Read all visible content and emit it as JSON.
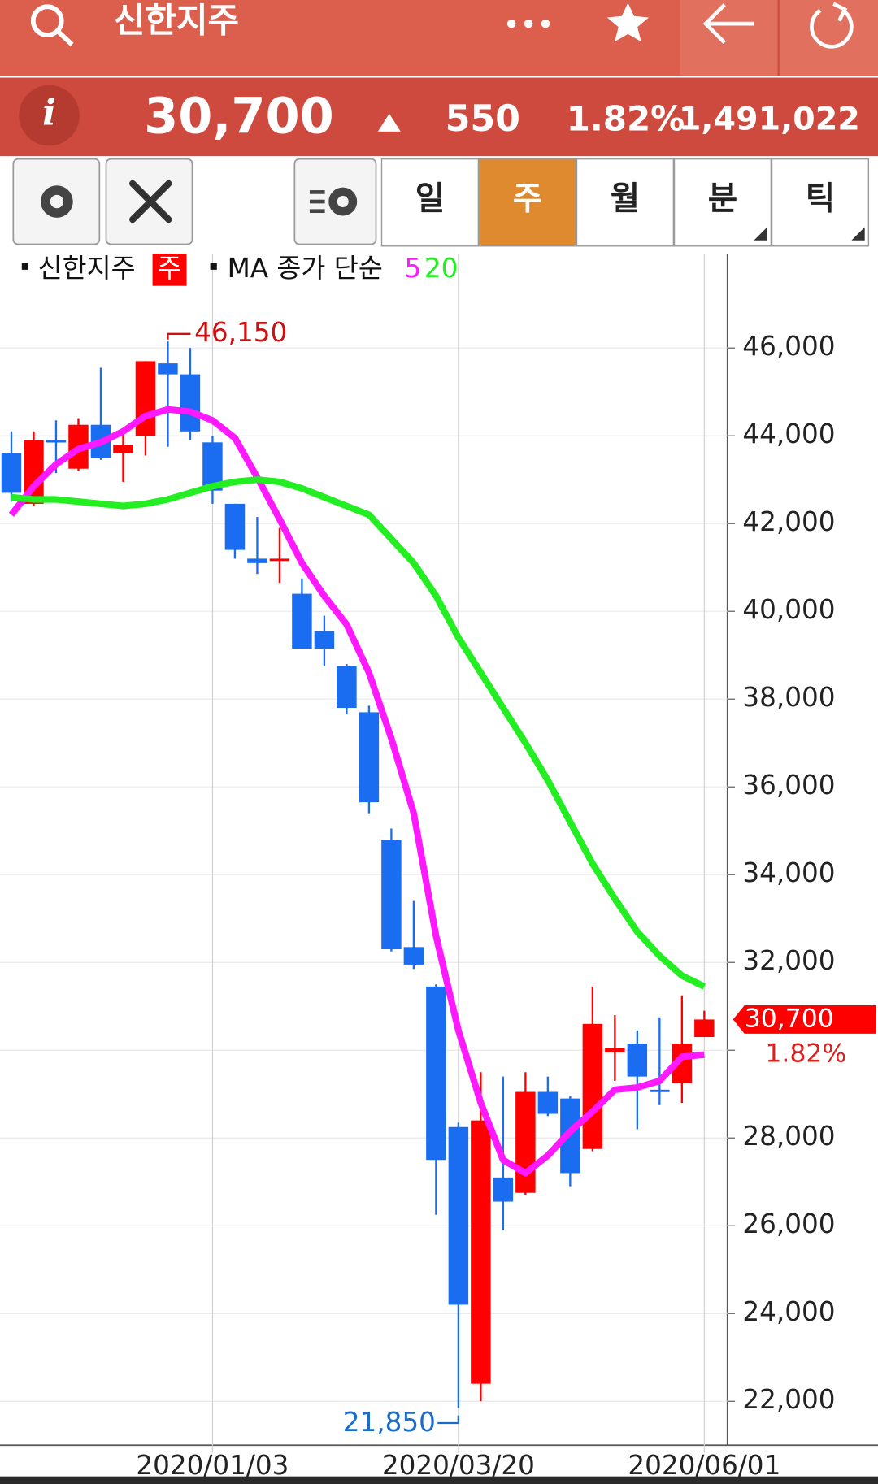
{
  "header": {
    "title": "신한지주"
  },
  "quote": {
    "price": "30,700",
    "change": "550",
    "change_pct": "1.82%",
    "volume": "1,491,022"
  },
  "tabs": {
    "items": [
      "일",
      "주",
      "월",
      "분",
      "틱"
    ],
    "active": 1
  },
  "chart_data": {
    "type": "candlestick",
    "legend": {
      "name": "신한지주",
      "period": "주",
      "ma_label": "MA 종가 단순"
    },
    "categories": [
      null,
      null,
      null,
      null,
      null,
      null,
      null,
      null,
      null,
      "2020/01/03",
      null,
      null,
      null,
      null,
      null,
      null,
      null,
      null,
      null,
      null,
      "2020/03/20",
      null,
      null,
      null,
      null,
      null,
      null,
      null,
      null,
      null,
      null,
      "2020/06/01"
    ],
    "open": [
      43600,
      42450,
      43900,
      43250,
      44250,
      43600,
      44000,
      45650,
      45400,
      43850,
      42450,
      41200,
      41150,
      40400,
      39550,
      38750,
      37700,
      34800,
      32350,
      31450,
      28250,
      22400,
      27100,
      26750,
      29050,
      28900,
      27750,
      29950,
      30150,
      29100,
      29250,
      30300
    ],
    "close": [
      42700,
      43900,
      43850,
      44250,
      43500,
      43800,
      45700,
      45400,
      44100,
      42750,
      41400,
      41100,
      41200,
      39150,
      39150,
      37800,
      35650,
      32300,
      31950,
      27500,
      24200,
      28400,
      26550,
      29050,
      28550,
      27200,
      30600,
      30050,
      29400,
      29050,
      30150,
      30700
    ],
    "high": [
      44100,
      44100,
      44350,
      44400,
      45550,
      44100,
      45700,
      46150,
      46000,
      44000,
      42450,
      42150,
      41900,
      40750,
      39900,
      38800,
      37850,
      35050,
      33400,
      31500,
      28350,
      29500,
      29400,
      29500,
      29400,
      28950,
      31450,
      30800,
      30450,
      30750,
      31250,
      30900
    ],
    "low": [
      42500,
      42400,
      43150,
      43200,
      43450,
      42950,
      43550,
      43750,
      43900,
      42450,
      41200,
      40850,
      40650,
      39150,
      38750,
      37650,
      35400,
      32250,
      31850,
      26250,
      21850,
      22000,
      25900,
      26700,
      28500,
      26900,
      27700,
      29300,
      28200,
      28750,
      28800,
      30300
    ],
    "up_color": "#ff0000",
    "down_color": "#1a6cf0",
    "series": [
      {
        "name": "5",
        "color": "#ff19ff",
        "values": [
          42200,
          42850,
          43350,
          43700,
          43850,
          44100,
          44450,
          44600,
          44550,
          44350,
          43950,
          43050,
          42100,
          41100,
          40350,
          39700,
          38600,
          37100,
          35400,
          32600,
          30450,
          28800,
          27500,
          27200,
          27600,
          28150,
          28600,
          29100,
          29150,
          29300,
          29850,
          29900
        ]
      },
      {
        "name": "20",
        "color": "#22ee22",
        "values": [
          42600,
          42550,
          42550,
          42500,
          42450,
          42400,
          42450,
          42550,
          42700,
          42850,
          42950,
          43000,
          42950,
          42800,
          42600,
          42400,
          42200,
          41650,
          41100,
          40350,
          39400,
          38600,
          37800,
          37000,
          36150,
          35200,
          34250,
          33450,
          32700,
          32150,
          31700,
          31450
        ]
      }
    ],
    "ylim": [
      21000,
      48150
    ],
    "yticks": [
      {
        "value": 22000,
        "label": "22,000"
      },
      {
        "value": 24000,
        "label": "24,000"
      },
      {
        "value": 26000,
        "label": "26,000"
      },
      {
        "value": 28000,
        "label": "28,000"
      },
      {
        "value": 30000,
        "label": ""
      },
      {
        "value": 32000,
        "label": "32,000"
      },
      {
        "value": 34000,
        "label": "34,000"
      },
      {
        "value": 36000,
        "label": "36,000"
      },
      {
        "value": 38000,
        "label": "38,000"
      },
      {
        "value": 40000,
        "label": "40,000"
      },
      {
        "value": 42000,
        "label": "42,000"
      },
      {
        "value": 44000,
        "label": "44,000"
      },
      {
        "value": 46000,
        "label": "46,000"
      }
    ],
    "grid": true,
    "annotations": [
      {
        "index": 7,
        "value": 46150,
        "label": "46,150",
        "color": "#d01010"
      },
      {
        "index": 20,
        "value": 21850,
        "label": "21,850",
        "color": "#1a6cc8"
      }
    ],
    "last_price": {
      "value": 30700,
      "label": "30,700"
    }
  }
}
